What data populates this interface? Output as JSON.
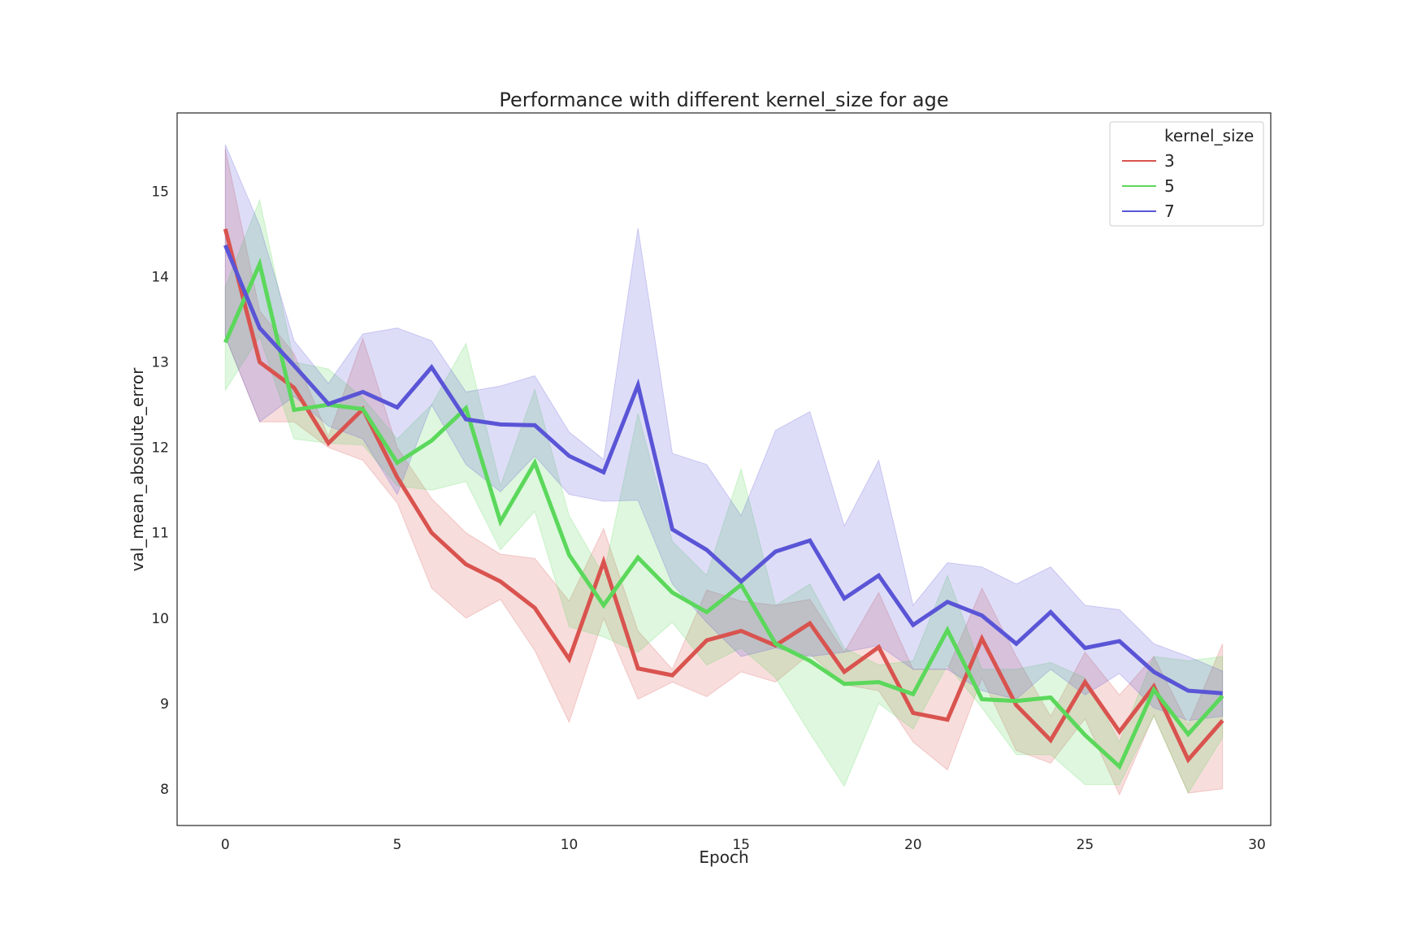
{
  "chart_data": {
    "type": "line",
    "title": "Performance with different kernel_size for age",
    "xlabel": "Epoch",
    "ylabel": "val_mean_absolute_error",
    "xlim": [
      -1.4,
      30.4
    ],
    "ylim": [
      7.57,
      15.92
    ],
    "xticks": [
      0,
      5,
      10,
      15,
      20,
      25,
      30
    ],
    "yticks": [
      8,
      9,
      10,
      11,
      12,
      13,
      14,
      15
    ],
    "grid": false,
    "legend": {
      "title": "kernel_size",
      "placement": "top-right"
    },
    "x": [
      0,
      1,
      2,
      3,
      4,
      5,
      6,
      7,
      8,
      9,
      10,
      11,
      12,
      13,
      14,
      15,
      16,
      17,
      18,
      19,
      20,
      21,
      22,
      23,
      24,
      25,
      26,
      27,
      28,
      29
    ],
    "series": [
      {
        "name": "3",
        "color": "#d9534f",
        "values": [
          14.56,
          13.0,
          12.7,
          12.05,
          12.45,
          11.65,
          11.0,
          10.63,
          10.43,
          10.12,
          9.52,
          10.66,
          9.41,
          9.33,
          9.74,
          9.85,
          9.68,
          9.94,
          9.37,
          9.66,
          8.89,
          8.81,
          9.76,
          8.98,
          8.57,
          9.25,
          8.67,
          9.2,
          8.34,
          8.8
        ],
        "lower": [
          13.3,
          12.3,
          12.3,
          12.0,
          11.85,
          11.35,
          10.35,
          10.0,
          10.22,
          9.62,
          8.78,
          10.0,
          9.05,
          9.25,
          9.08,
          9.37,
          9.25,
          9.58,
          9.22,
          9.15,
          8.55,
          8.22,
          9.3,
          8.45,
          8.3,
          8.82,
          7.93,
          8.86,
          7.95,
          8.0
        ],
        "upper": [
          15.5,
          13.6,
          13.1,
          12.13,
          13.28,
          12.0,
          11.4,
          11.0,
          10.75,
          10.7,
          10.2,
          11.05,
          9.85,
          9.4,
          10.33,
          10.2,
          10.15,
          10.22,
          9.6,
          10.3,
          9.4,
          9.4,
          10.35,
          9.55,
          8.85,
          9.6,
          9.1,
          9.55,
          8.75,
          9.7
        ]
      },
      {
        "name": "5",
        "color": "#5bd85b",
        "values": [
          13.23,
          14.15,
          12.44,
          12.5,
          12.45,
          11.82,
          12.08,
          12.46,
          11.13,
          11.82,
          10.74,
          10.15,
          10.71,
          10.3,
          10.07,
          10.39,
          9.7,
          9.5,
          9.23,
          9.25,
          9.11,
          9.86,
          9.05,
          9.03,
          9.07,
          8.63,
          8.26,
          9.16,
          8.64,
          9.09
        ],
        "lower": [
          12.67,
          13.3,
          12.1,
          12.05,
          12.03,
          11.55,
          11.5,
          11.6,
          10.8,
          11.25,
          9.9,
          9.78,
          9.6,
          9.95,
          9.45,
          9.65,
          9.3,
          8.65,
          8.03,
          9.0,
          8.7,
          9.45,
          8.95,
          8.4,
          8.4,
          8.05,
          8.05,
          8.85,
          7.95,
          8.6
        ],
        "upper": [
          13.88,
          14.9,
          13.0,
          12.92,
          12.58,
          12.1,
          12.5,
          13.22,
          11.55,
          12.68,
          11.2,
          10.5,
          12.4,
          10.9,
          10.5,
          11.75,
          10.15,
          10.4,
          9.65,
          9.45,
          9.5,
          10.5,
          9.4,
          9.4,
          9.48,
          9.3,
          8.55,
          9.55,
          9.5,
          9.55
        ]
      },
      {
        "name": "7",
        "color": "#5a55d6",
        "values": [
          14.37,
          13.4,
          12.96,
          12.51,
          12.65,
          12.47,
          12.94,
          12.33,
          12.27,
          12.26,
          11.9,
          11.71,
          12.73,
          11.04,
          10.8,
          10.43,
          10.78,
          10.91,
          10.23,
          10.5,
          9.92,
          10.19,
          10.03,
          9.7,
          10.07,
          9.65,
          9.73,
          9.37,
          9.15,
          9.12
        ],
        "lower": [
          13.3,
          12.3,
          12.6,
          12.25,
          12.1,
          11.45,
          12.5,
          11.8,
          11.48,
          11.9,
          11.45,
          11.37,
          11.38,
          10.4,
          9.95,
          9.55,
          9.65,
          9.55,
          9.6,
          9.68,
          9.4,
          9.4,
          9.15,
          9.05,
          9.4,
          9.1,
          9.35,
          8.95,
          8.8,
          8.85
        ],
        "upper": [
          15.55,
          14.6,
          13.25,
          12.75,
          13.33,
          13.4,
          13.25,
          12.65,
          12.72,
          12.84,
          12.18,
          11.86,
          14.57,
          11.93,
          11.8,
          11.2,
          12.2,
          12.42,
          11.08,
          11.85,
          10.15,
          10.65,
          10.6,
          10.4,
          10.6,
          10.15,
          10.1,
          9.7,
          9.55,
          9.38
        ]
      }
    ]
  }
}
